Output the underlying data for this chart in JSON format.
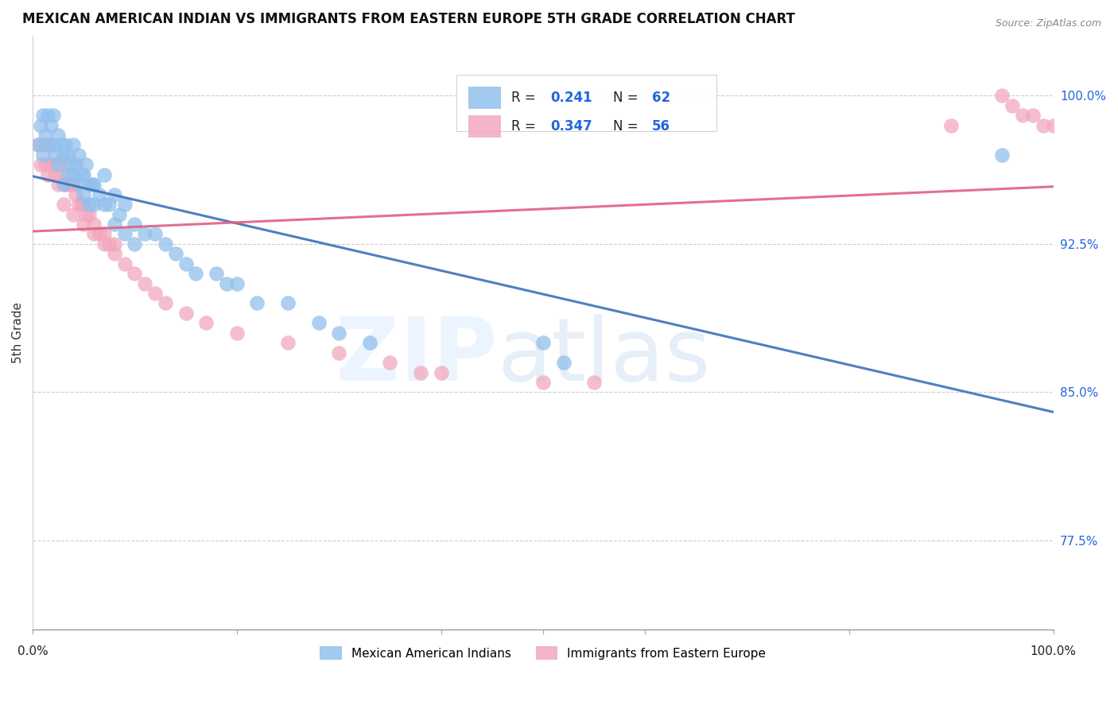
{
  "title": "MEXICAN AMERICAN INDIAN VS IMMIGRANTS FROM EASTERN EUROPE 5TH GRADE CORRELATION CHART",
  "source": "Source: ZipAtlas.com",
  "ylabel": "5th Grade",
  "xlim": [
    0.0,
    1.0
  ],
  "ylim": [
    0.73,
    1.03
  ],
  "blue_R": 0.241,
  "blue_N": 62,
  "pink_R": 0.347,
  "pink_N": 56,
  "blue_color": "#92C0EC",
  "pink_color": "#F2A8BE",
  "blue_line_color": "#3B72B8",
  "pink_line_color": "#E06080",
  "legend_label_blue": "Mexican American Indians",
  "legend_label_pink": "Immigrants from Eastern Europe",
  "y_tick_vals": [
    0.775,
    0.85,
    0.925,
    1.0
  ],
  "y_tick_labels": [
    "77.5%",
    "85.0%",
    "92.5%",
    "100.0%"
  ],
  "x_tick_vals": [
    0.0,
    0.2,
    0.4,
    0.5,
    0.6,
    0.8,
    1.0
  ],
  "blue_scatter_x": [
    0.005,
    0.008,
    0.01,
    0.01,
    0.012,
    0.015,
    0.015,
    0.018,
    0.02,
    0.02,
    0.022,
    0.025,
    0.025,
    0.028,
    0.03,
    0.03,
    0.032,
    0.035,
    0.035,
    0.038,
    0.04,
    0.04,
    0.042,
    0.045,
    0.045,
    0.048,
    0.05,
    0.05,
    0.052,
    0.055,
    0.055,
    0.058,
    0.06,
    0.06,
    0.065,
    0.07,
    0.07,
    0.075,
    0.08,
    0.08,
    0.085,
    0.09,
    0.09,
    0.1,
    0.1,
    0.11,
    0.12,
    0.13,
    0.14,
    0.15,
    0.16,
    0.18,
    0.19,
    0.2,
    0.22,
    0.25,
    0.28,
    0.3,
    0.33,
    0.5,
    0.52,
    0.95
  ],
  "blue_scatter_y": [
    0.975,
    0.985,
    0.99,
    0.97,
    0.98,
    0.99,
    0.975,
    0.985,
    0.99,
    0.975,
    0.97,
    0.98,
    0.965,
    0.975,
    0.97,
    0.955,
    0.975,
    0.97,
    0.96,
    0.965,
    0.975,
    0.96,
    0.965,
    0.97,
    0.955,
    0.96,
    0.96,
    0.95,
    0.965,
    0.955,
    0.945,
    0.955,
    0.955,
    0.945,
    0.95,
    0.96,
    0.945,
    0.945,
    0.95,
    0.935,
    0.94,
    0.945,
    0.93,
    0.935,
    0.925,
    0.93,
    0.93,
    0.925,
    0.92,
    0.915,
    0.91,
    0.91,
    0.905,
    0.905,
    0.895,
    0.895,
    0.885,
    0.88,
    0.875,
    0.875,
    0.865,
    0.97
  ],
  "pink_scatter_x": [
    0.005,
    0.008,
    0.01,
    0.012,
    0.015,
    0.015,
    0.018,
    0.02,
    0.022,
    0.025,
    0.025,
    0.028,
    0.03,
    0.032,
    0.035,
    0.038,
    0.04,
    0.042,
    0.045,
    0.048,
    0.05,
    0.052,
    0.055,
    0.06,
    0.065,
    0.07,
    0.075,
    0.08,
    0.09,
    0.1,
    0.11,
    0.12,
    0.13,
    0.15,
    0.17,
    0.2,
    0.25,
    0.3,
    0.35,
    0.38,
    0.4,
    0.5,
    0.55,
    0.9,
    0.95,
    0.96,
    0.97,
    0.98,
    0.99,
    1.0,
    0.03,
    0.04,
    0.05,
    0.06,
    0.07,
    0.08
  ],
  "pink_scatter_y": [
    0.975,
    0.965,
    0.975,
    0.965,
    0.975,
    0.96,
    0.965,
    0.965,
    0.96,
    0.965,
    0.955,
    0.96,
    0.965,
    0.955,
    0.955,
    0.955,
    0.955,
    0.95,
    0.945,
    0.945,
    0.945,
    0.94,
    0.94,
    0.935,
    0.93,
    0.93,
    0.925,
    0.92,
    0.915,
    0.91,
    0.905,
    0.9,
    0.895,
    0.89,
    0.885,
    0.88,
    0.875,
    0.87,
    0.865,
    0.86,
    0.86,
    0.855,
    0.855,
    0.985,
    1.0,
    0.995,
    0.99,
    0.99,
    0.985,
    0.985,
    0.945,
    0.94,
    0.935,
    0.93,
    0.925,
    0.925
  ]
}
